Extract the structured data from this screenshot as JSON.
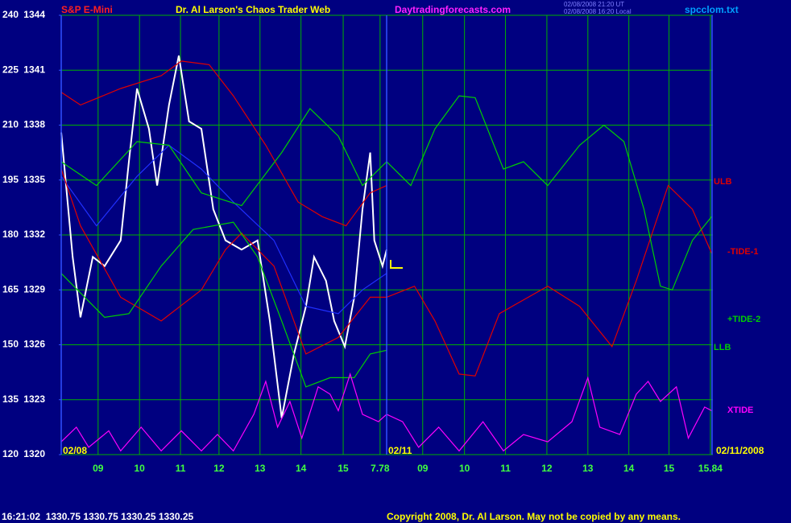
{
  "header": {
    "symbol": "S&P E-Mini",
    "site": "Daytradingforecasts.com",
    "timestamps": [
      "02/08/2008 21:20 UT",
      "02/08/2008 16:20 Local"
    ],
    "file": "spcclom.txt"
  },
  "footer": {
    "quote": "16:21:02  1330.75 1330.75 1330.25 1330.25",
    "copyright": "Copyright 2008, Dr. Al Larson. May not be copied by any means."
  },
  "chart_data": {
    "type": "line",
    "title": "Dr. Al Larson's Chaos Trader Web",
    "date_labels": [
      "02/08",
      "02/11",
      "02/11/2008"
    ],
    "xlim": [
      0,
      15.9
    ],
    "xticks": [
      {
        "value": 0.9,
        "label": "09"
      },
      {
        "value": 1.91,
        "label": "10"
      },
      {
        "value": 2.91,
        "label": "11"
      },
      {
        "value": 3.85,
        "label": "12"
      },
      {
        "value": 4.85,
        "label": "13"
      },
      {
        "value": 5.85,
        "label": "14"
      },
      {
        "value": 6.88,
        "label": "15"
      },
      7.78,
      {
        "value": 8.82,
        "label": "09"
      },
      {
        "value": 9.84,
        "label": "10"
      },
      {
        "value": 10.84,
        "label": "11"
      },
      {
        "value": 11.85,
        "label": "12"
      },
      {
        "value": 12.85,
        "label": "13"
      },
      {
        "value": 13.85,
        "label": "14"
      },
      {
        "value": 14.83,
        "label": "15"
      },
      15.84
    ],
    "ylim": [
      1320,
      1344
    ],
    "yticks": [
      1320,
      1323,
      1326,
      1329,
      1332,
      1335,
      1338,
      1341,
      1344
    ],
    "y2lim": [
      120,
      240
    ],
    "y2ticks": [
      120,
      135,
      150,
      165,
      180,
      195,
      210,
      225,
      240
    ],
    "grid": true,
    "series": [
      {
        "color": "#ffffff",
        "x": [
          0,
          0.28,
          0.47,
          0.77,
          1.06,
          1.45,
          1.65,
          1.85,
          2.14,
          2.34,
          2.63,
          2.87,
          3.12,
          3.42,
          3.71,
          4.01,
          4.4,
          4.79,
          5.09,
          5.38,
          5.68,
          5.97,
          6.17,
          6.46,
          6.66,
          6.92,
          7.15,
          7.35,
          7.54,
          7.64,
          7.84,
          7.94
        ],
        "values": [
          1337.6,
          1330.8,
          1327.5,
          1330.8,
          1330.3,
          1331.7,
          1336.0,
          1340.0,
          1337.8,
          1334.7,
          1339.1,
          1341.8,
          1338.2,
          1337.8,
          1333.4,
          1331.7,
          1331.2,
          1331.7,
          1327.3,
          1322.0,
          1325.5,
          1328.1,
          1330.8,
          1329.5,
          1327.3,
          1325.9,
          1328.6,
          1333.4,
          1336.5,
          1331.7,
          1330.3,
          1331.2
        ]
      },
      {
        "color": "#2030ff",
        "x": [
          0,
          0.86,
          1.85,
          2.63,
          3.42,
          4.2,
          5.19,
          5.97,
          6.76,
          7.35,
          7.94
        ],
        "values": [
          1335.2,
          1332.5,
          1335.2,
          1336.9,
          1335.6,
          1333.8,
          1331.7,
          1328.1,
          1327.7,
          1329.0,
          1329.9
        ]
      },
      {
        "name": "ULB",
        "color": "#e00000",
        "x": [
          0,
          0.47,
          1.45,
          2.44,
          2.93,
          3.61,
          4.2,
          4.99,
          5.78,
          6.37,
          6.95,
          7.54,
          7.94
        ],
        "values": [
          1339.8,
          1339.1,
          1340.0,
          1340.7,
          1341.5,
          1341.3,
          1339.6,
          1336.9,
          1333.8,
          1333.0,
          1332.5,
          1334.3,
          1334.7
        ]
      },
      {
        "name": "-TIDE-1",
        "color": "#e00000",
        "x": [
          0,
          0.47,
          1.45,
          2.44,
          3.42,
          4.01,
          4.4,
          5.19,
          5.97,
          6.76,
          7.54,
          7.94,
          8.62,
          9.12,
          9.71,
          10.1,
          10.69,
          11.87,
          12.65,
          13.44,
          14.03,
          14.81,
          15.4,
          15.87
        ],
        "values": [
          1335.6,
          1332.5,
          1328.6,
          1327.3,
          1329.0,
          1331.2,
          1332.1,
          1330.3,
          1325.5,
          1326.4,
          1328.6,
          1328.6,
          1329.2,
          1327.3,
          1324.4,
          1324.3,
          1327.7,
          1329.2,
          1328.1,
          1325.9,
          1329.5,
          1334.7,
          1333.4,
          1331.0
        ]
      },
      {
        "name": "+TIDE-2",
        "color": "#00d000",
        "x": [
          0,
          0.86,
          1.85,
          2.63,
          3.42,
          4.4,
          5.38,
          6.07,
          6.76,
          7.35,
          7.94,
          8.53,
          9.12,
          9.71,
          10.1,
          10.79,
          11.28,
          11.87,
          12.65,
          13.24,
          13.73,
          14.22,
          14.62,
          14.91,
          15.4,
          15.87
        ],
        "values": [
          1336.0,
          1334.7,
          1337.1,
          1336.9,
          1334.3,
          1333.6,
          1336.5,
          1338.9,
          1337.4,
          1334.7,
          1336.0,
          1334.7,
          1337.8,
          1339.6,
          1339.5,
          1335.6,
          1336.0,
          1334.7,
          1336.9,
          1338.0,
          1337.1,
          1333.4,
          1329.2,
          1329.0,
          1331.7,
          1333.0
        ]
      },
      {
        "name": "LLB",
        "color": "#00d000",
        "x": [
          0,
          1.06,
          1.65,
          2.44,
          3.22,
          4.2,
          4.79,
          5.38,
          5.97,
          6.56,
          7.15,
          7.54,
          7.94
        ],
        "values": [
          1329.9,
          1327.5,
          1327.7,
          1330.3,
          1332.3,
          1332.7,
          1330.8,
          1327.3,
          1323.7,
          1324.2,
          1324.2,
          1325.5,
          1325.7
        ]
      },
      {
        "name": "XTIDE",
        "color": "#ff00ff",
        "x": [
          0,
          0.37,
          0.67,
          1.16,
          1.45,
          1.95,
          2.44,
          2.93,
          3.42,
          3.81,
          4.2,
          4.7,
          4.99,
          5.28,
          5.58,
          5.87,
          6.27,
          6.56,
          6.76,
          7.05,
          7.35,
          7.74,
          7.94,
          8.33,
          8.72,
          9.21,
          9.71,
          10.29,
          10.79,
          11.28,
          11.87,
          12.46,
          12.85,
          13.14,
          13.63,
          14.03,
          14.32,
          14.62,
          15.01,
          15.3,
          15.7,
          15.87
        ],
        "values": [
          1320.7,
          1321.5,
          1320.4,
          1321.3,
          1320.2,
          1321.5,
          1320.2,
          1321.3,
          1320.2,
          1321.1,
          1320.2,
          1322.2,
          1324.0,
          1321.5,
          1322.9,
          1320.9,
          1323.7,
          1323.3,
          1322.4,
          1324.4,
          1322.2,
          1321.8,
          1322.2,
          1321.8,
          1320.4,
          1321.5,
          1320.2,
          1321.8,
          1320.2,
          1321.1,
          1320.7,
          1321.8,
          1324.2,
          1321.5,
          1321.1,
          1323.3,
          1324.0,
          1322.9,
          1323.7,
          1320.9,
          1322.6,
          1322.4
        ]
      }
    ]
  }
}
